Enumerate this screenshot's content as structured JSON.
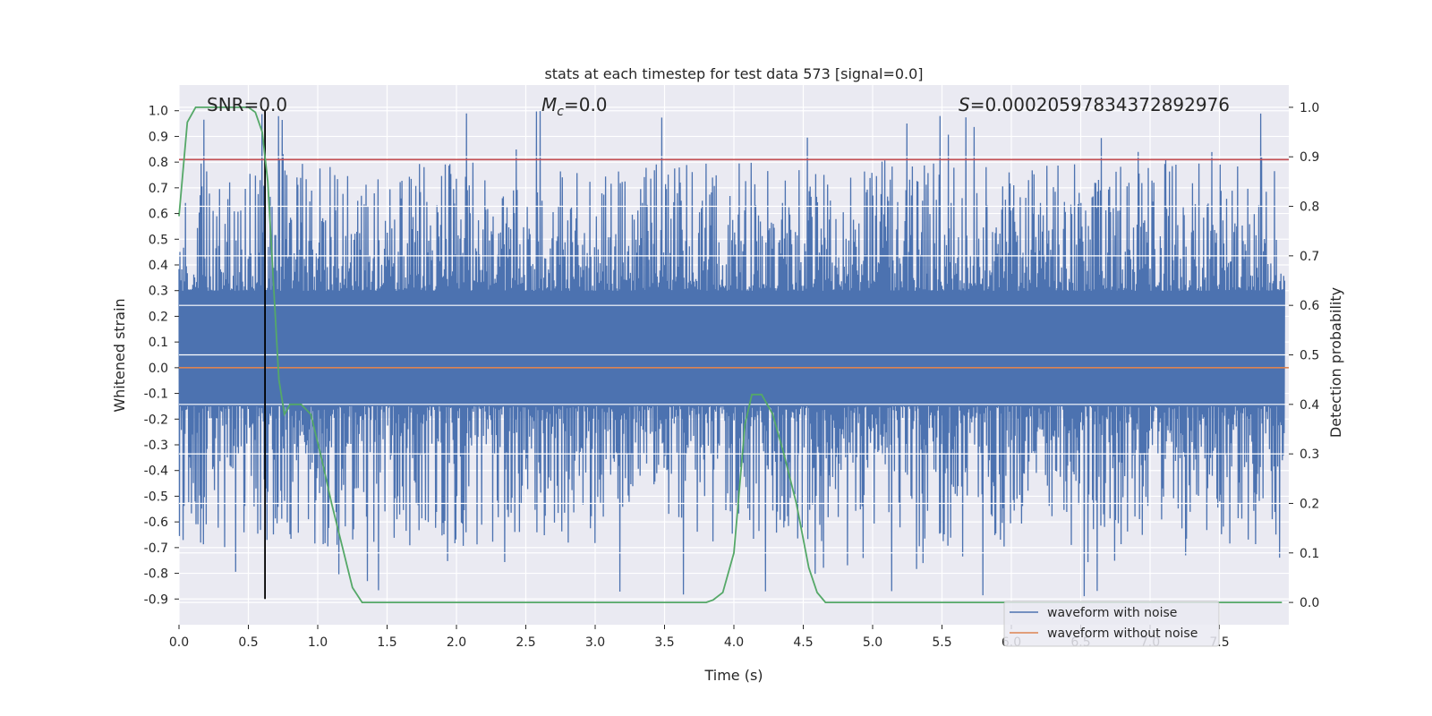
{
  "chart_data": {
    "type": "line",
    "title": "stats at each timestep for test data 573 [signal=0.0]",
    "xlabel": "Time (s)",
    "ylabel": "Whitened strain",
    "y2label": "Detection probability",
    "xlim": [
      0.0,
      8.0
    ],
    "ylim": [
      -1.0,
      1.1
    ],
    "y2lim": [
      -0.045,
      1.045
    ],
    "xticks": [
      "0.0",
      "0.5",
      "1.0",
      "1.5",
      "2.0",
      "2.5",
      "3.0",
      "3.5",
      "4.0",
      "4.5",
      "5.0",
      "5.5",
      "6.0",
      "6.5",
      "7.0",
      "7.5"
    ],
    "yticks": [
      "1.0",
      "0.9",
      "0.8",
      "0.7",
      "0.6",
      "0.5",
      "0.4",
      "0.3",
      "0.2",
      "0.1",
      "0.0",
      "-0.1",
      "-0.2",
      "-0.3",
      "-0.4",
      "-0.5",
      "-0.6",
      "-0.7",
      "-0.8",
      "-0.9"
    ],
    "y2ticks": [
      "1.0",
      "0.9",
      "0.8",
      "0.7",
      "0.6",
      "0.5",
      "0.4",
      "0.3",
      "0.2",
      "0.1",
      "0.0"
    ],
    "annotations": {
      "snr": "SNR=0.0",
      "mc_symbol": "M",
      "mc_sub": "c",
      "mc_value": "=0.0",
      "s_symbol": "S",
      "s_value": "=0.00020597834372892976"
    },
    "threshold_line": {
      "value": 0.81,
      "color": "#c44e52"
    },
    "marker_time": 0.62,
    "marker_range": [
      -0.9,
      1.0
    ],
    "series": [
      {
        "name": "waveform with noise",
        "color": "#4c72b0",
        "noise_envelope": {
          "upper_peaks": [
            0.85,
            0.74,
            0.65,
            0.96,
            0.92,
            0.97,
            1.0,
            0.88,
            0.78
          ],
          "lower_peaks": [
            -0.65,
            -0.84,
            -0.88,
            -0.87,
            -0.9,
            -0.9,
            -0.83,
            -0.89
          ]
        }
      },
      {
        "name": "waveform without noise",
        "color": "#dd8452",
        "values_constant": 0.0
      },
      {
        "name": "detection probability",
        "color": "#55a868",
        "axis": "right",
        "x": [
          0.0,
          0.06,
          0.12,
          0.2,
          0.3,
          0.4,
          0.5,
          0.55,
          0.6,
          0.64,
          0.68,
          0.72,
          0.76,
          0.8,
          0.88,
          0.95,
          1.02,
          1.1,
          1.25,
          1.32,
          1.38,
          1.5,
          2.0,
          3.0,
          3.5,
          3.8,
          3.85,
          3.92,
          4.0,
          4.08,
          4.13,
          4.2,
          4.28,
          4.36,
          4.45,
          4.54,
          4.6,
          4.66,
          5.0,
          6.0,
          7.0,
          7.95
        ],
        "values": [
          0.78,
          0.97,
          1.0,
          1.0,
          1.0,
          1.0,
          1.0,
          0.99,
          0.95,
          0.85,
          0.65,
          0.45,
          0.38,
          0.4,
          0.4,
          0.38,
          0.3,
          0.2,
          0.03,
          0.0,
          0.0,
          0.0,
          0.0,
          0.0,
          0.0,
          0.0,
          0.005,
          0.02,
          0.1,
          0.36,
          0.42,
          0.42,
          0.38,
          0.3,
          0.2,
          0.07,
          0.02,
          0.0,
          0.0,
          0.0,
          0.0,
          0.0
        ]
      }
    ],
    "legend": {
      "placement": "bottom-right",
      "entries": [
        "waveform with noise",
        "waveform without noise"
      ]
    }
  }
}
